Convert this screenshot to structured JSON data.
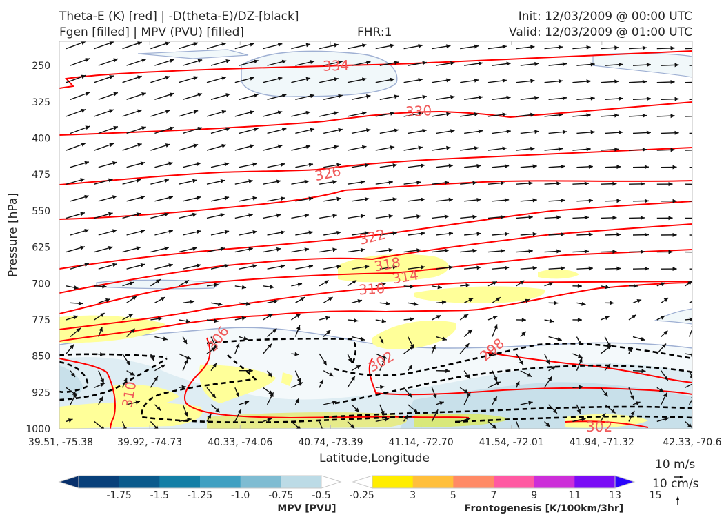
{
  "title": {
    "left_line1": "Theta-E (K) [red] | -D(theta-E)/DZ-[black]",
    "left_line2": "Fgen [filled] | MPV (PVU) [filled]",
    "center": "FHR:1",
    "right_line1": "Init: 12/03/2009 @ 00:00 UTC",
    "right_line2": "Valid: 12/03/2009 @ 01:00 UTC"
  },
  "colors": {
    "theta_e": "#ff0000",
    "dthetae_dz": "#000000",
    "mpv_fill": "#d8eaf0",
    "fgen_fill": "#ffff99",
    "contour_label": "#f05a5a"
  },
  "chart_data": {
    "type": "cross-section",
    "xlabel": "Latitude,Longitude",
    "ylabel": "Pressure [hPa]",
    "xticks": [
      "39.51, -75.38",
      "39.92, -74.73",
      "40.33, -74.06",
      "40.74, -73.39",
      "41.14, -72.70",
      "41.54, -72.01",
      "41.94, -71.32",
      "42.33, -70.6"
    ],
    "yticks": [
      250,
      325,
      400,
      475,
      550,
      625,
      700,
      775,
      850,
      925,
      1000
    ],
    "ylim": [
      1000,
      200
    ],
    "theta_e_contour_labels": [
      "334",
      "330",
      "326",
      "322",
      "318",
      "314",
      "310",
      "306",
      "302",
      "298",
      "310",
      "302"
    ],
    "colorbars": [
      {
        "label": "MPV [PVU]",
        "ticks": [
          "-1.75",
          "-1.5",
          "-1.25",
          "-1.0",
          "-0.75",
          "-0.5",
          "-0.25"
        ],
        "colors": [
          "#08306b",
          "#08407a",
          "#0a5a8c",
          "#137fa6",
          "#3fa0c2",
          "#7fbcd2",
          "#bcdbe6",
          "#ffffff"
        ]
      },
      {
        "label": "Frontogenesis [K/100km/3hr]",
        "ticks": [
          "3",
          "5",
          "7",
          "9",
          "11",
          "13",
          "15"
        ],
        "colors": [
          "#ffffff",
          "#ffed00",
          "#ffbf3c",
          "#ff8a66",
          "#ff59a2",
          "#cc2ed8",
          "#7a0cf5",
          "#2b06fb"
        ]
      }
    ],
    "quiver_key": {
      "horizontal": "10 m/s",
      "vertical": "10 cm/s"
    }
  }
}
